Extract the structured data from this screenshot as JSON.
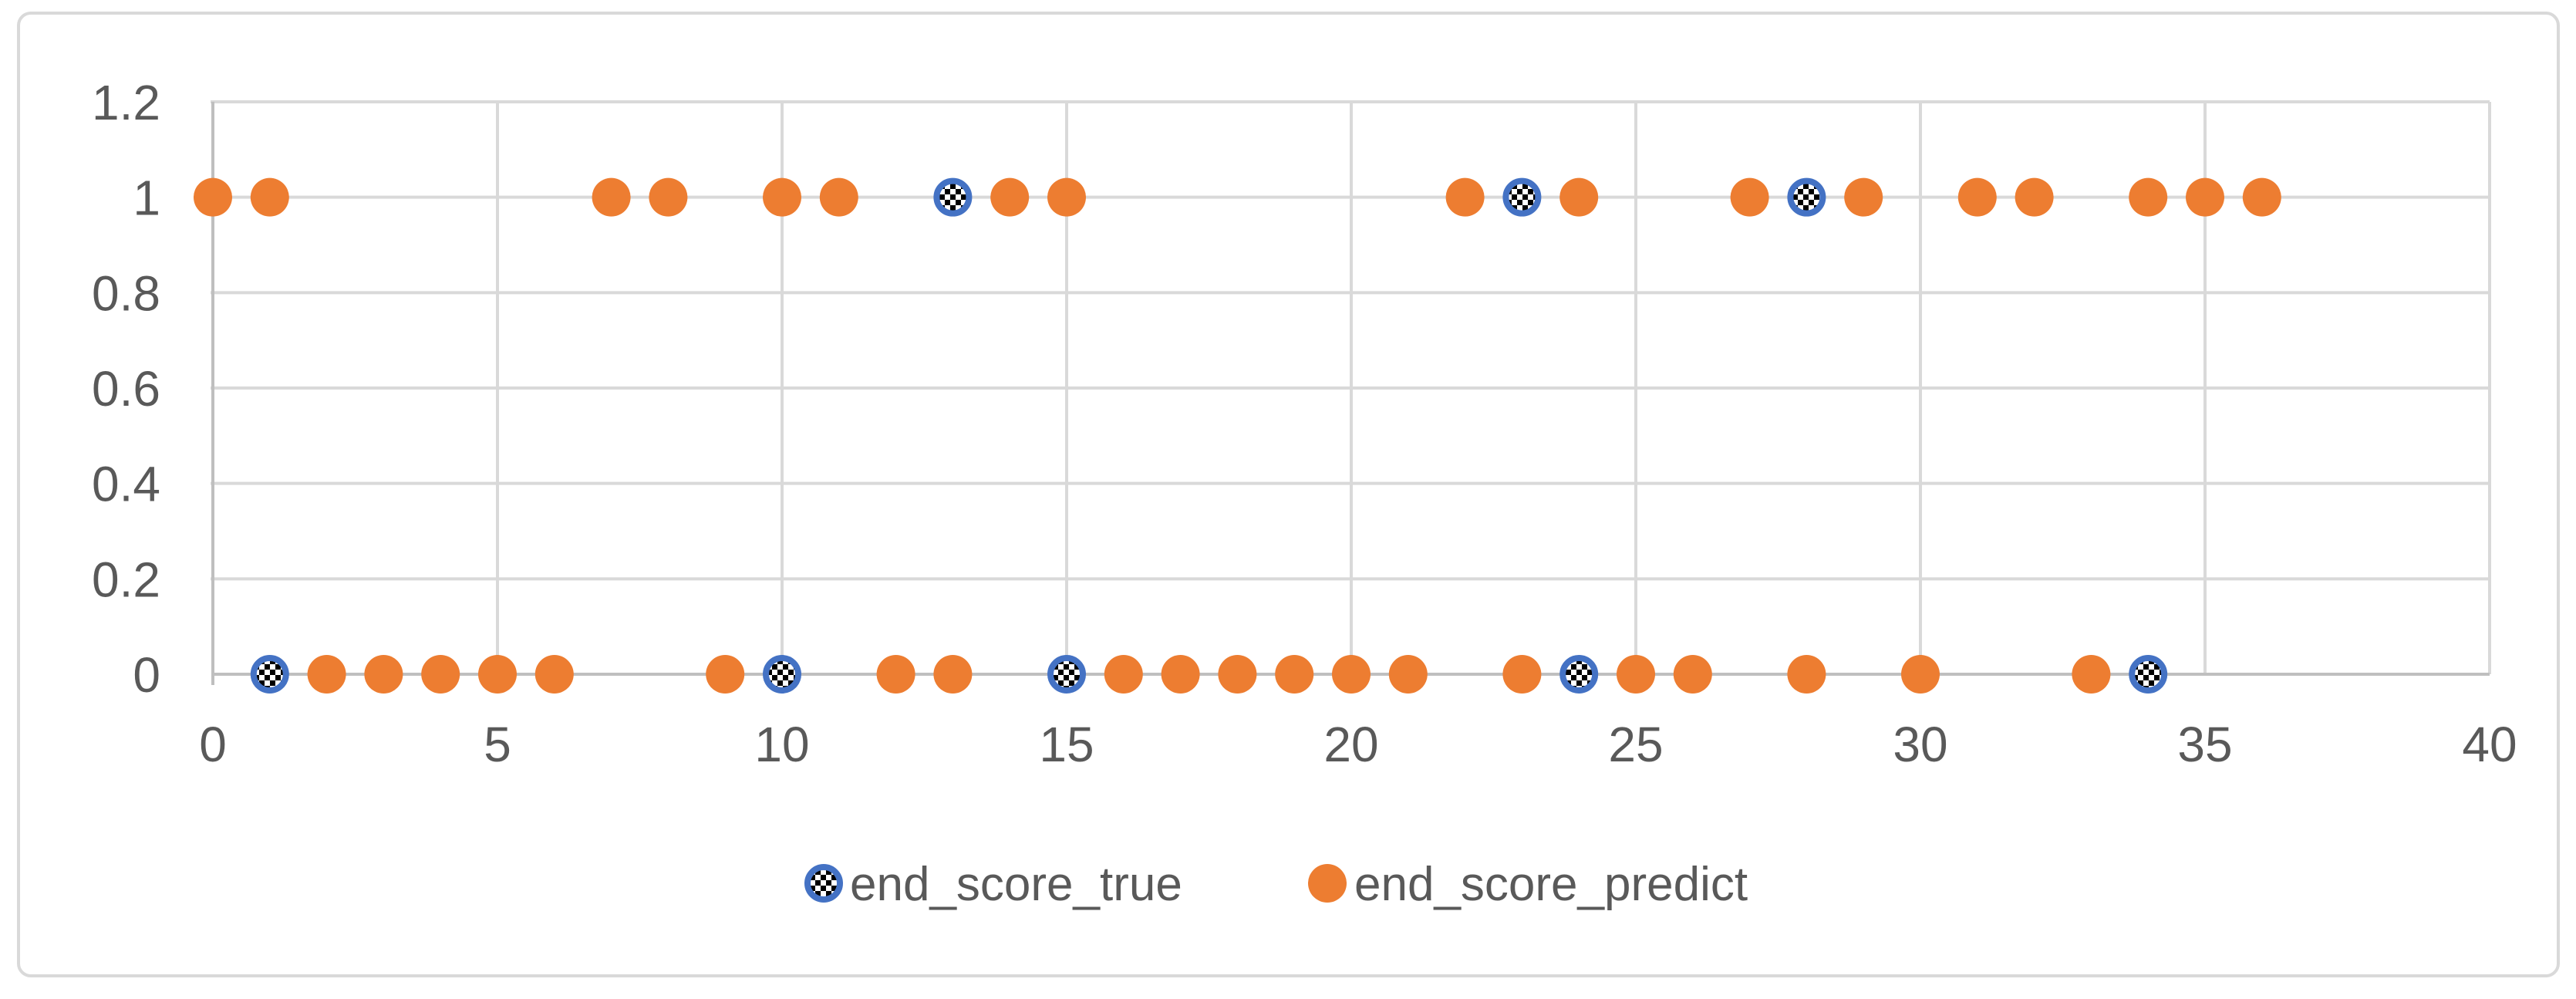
{
  "chart_data": {
    "type": "scatter",
    "title": "",
    "xlabel": "",
    "ylabel": "",
    "xlim": [
      0,
      40
    ],
    "ylim": [
      0,
      1.2
    ],
    "grid": true,
    "legend_position": "bottom",
    "x_tick_values": [
      0,
      5,
      10,
      15,
      20,
      25,
      30,
      35,
      40
    ],
    "x_tick_labels": [
      "0",
      "5",
      "10",
      "15",
      "20",
      "25",
      "30",
      "35",
      "40"
    ],
    "y_tick_values": [
      0,
      0.2,
      0.4,
      0.6,
      0.8,
      1,
      1.2
    ],
    "y_tick_labels": [
      "0",
      "0.2",
      "0.4",
      "0.6",
      "0.8",
      "1",
      "1.2"
    ],
    "series": [
      {
        "name": "end_score_true",
        "marker": "blue-ring-checkered-circle",
        "color": "#4472C4",
        "points": [
          [
            1,
            0
          ],
          [
            10,
            0
          ],
          [
            13,
            1
          ],
          [
            15,
            0
          ],
          [
            23,
            1
          ],
          [
            24,
            0
          ],
          [
            28,
            1
          ],
          [
            34,
            0
          ]
        ]
      },
      {
        "name": "end_score_predict",
        "marker": "solid-circle",
        "color": "#ED7D31",
        "points": [
          [
            0,
            1
          ],
          [
            1,
            1
          ],
          [
            2,
            0
          ],
          [
            3,
            0
          ],
          [
            4,
            0
          ],
          [
            5,
            0
          ],
          [
            6,
            0
          ],
          [
            7,
            1
          ],
          [
            8,
            1
          ],
          [
            9,
            0
          ],
          [
            10,
            1
          ],
          [
            11,
            1
          ],
          [
            12,
            0
          ],
          [
            13,
            0
          ],
          [
            14,
            1
          ],
          [
            15,
            1
          ],
          [
            16,
            0
          ],
          [
            17,
            0
          ],
          [
            18,
            0
          ],
          [
            19,
            0
          ],
          [
            20,
            0
          ],
          [
            21,
            0
          ],
          [
            22,
            1
          ],
          [
            23,
            0
          ],
          [
            24,
            1
          ],
          [
            25,
            0
          ],
          [
            26,
            0
          ],
          [
            27,
            1
          ],
          [
            28,
            0
          ],
          [
            29,
            1
          ],
          [
            30,
            0
          ],
          [
            31,
            1
          ],
          [
            32,
            1
          ],
          [
            33,
            0
          ],
          [
            34,
            1
          ],
          [
            35,
            1
          ],
          [
            36,
            1
          ]
        ]
      }
    ]
  },
  "legend": {
    "items": [
      {
        "label": "end_score_true",
        "marker": "checkered-circle"
      },
      {
        "label": "end_score_predict",
        "marker": "solid-circle"
      }
    ]
  },
  "colors": {
    "background": "#FFFFFF",
    "chart_border": "#D9D9D9",
    "gridline": "#D9D9D9",
    "axis_line": "#BFBFBF",
    "tick_text": "#595959",
    "legend_text": "#595959",
    "series_true": "#4472C4",
    "series_predict": "#ED7D31",
    "checker_black": "#000000",
    "checker_white": "#FFFFFF"
  }
}
